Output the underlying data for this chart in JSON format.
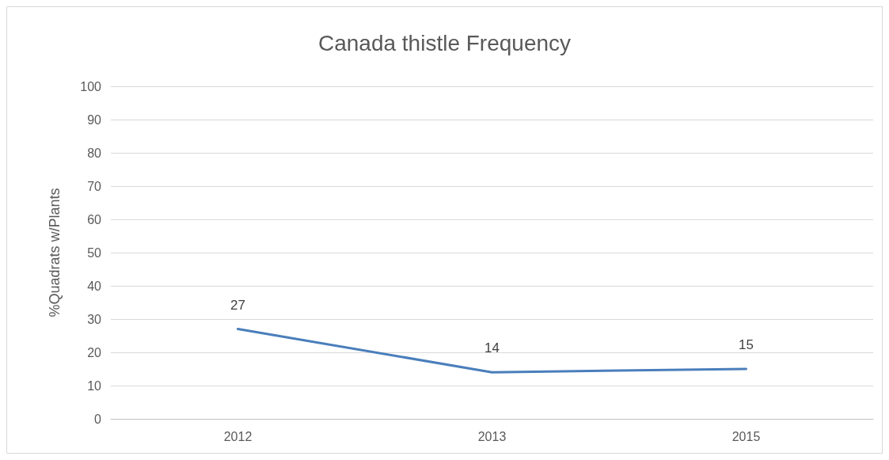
{
  "chart_data": {
    "type": "line",
    "title": "Canada thistle Frequency",
    "ylabel": "%Quadrats w/Plants",
    "categories": [
      "2012",
      "2013",
      "2015"
    ],
    "series": [
      {
        "color": "#4a7ebb",
        "values": [
          27,
          14,
          15
        ]
      }
    ],
    "ylim": [
      0,
      100
    ],
    "yticks": [
      0,
      10,
      20,
      30,
      40,
      50,
      60,
      70,
      80,
      90,
      100
    ],
    "grid": "y",
    "data_labels": true,
    "marker": "none",
    "line_style": "solid"
  }
}
